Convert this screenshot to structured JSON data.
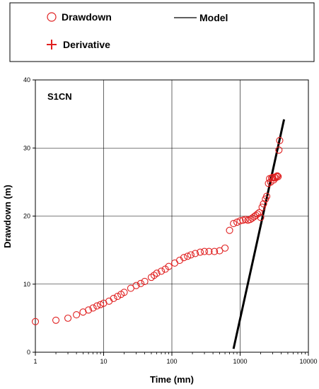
{
  "legend": {
    "drawdown": "Drawdown",
    "derivative": "Derivative",
    "model": "Model"
  },
  "colors": {
    "drawdown": "#e02020",
    "derivative": "#e02020",
    "model": "#000000",
    "grid": "#000000",
    "frame": "#000000"
  },
  "chart_data": {
    "type": "scatter",
    "title": "",
    "panel_label": "S1CN",
    "xlabel": "Time (mn)",
    "ylabel": "Drawdown (m)",
    "x_scale": "log",
    "xlim": [
      1,
      10000
    ],
    "ylim": [
      0,
      40
    ],
    "x_ticks": [
      1,
      10,
      100,
      1000,
      10000
    ],
    "x_tick_labels": [
      "1",
      "10",
      "100",
      "1000",
      "10000"
    ],
    "y_ticks": [
      0,
      10,
      20,
      30,
      40
    ],
    "y_tick_labels": [
      "0",
      "10",
      "20",
      "30",
      "40"
    ],
    "grid": true,
    "legend_position": "top",
    "series": [
      {
        "name": "Drawdown",
        "marker": "circle",
        "points": [
          [
            1,
            4.5
          ],
          [
            2,
            4.7
          ],
          [
            3,
            5.0
          ],
          [
            4,
            5.5
          ],
          [
            5,
            5.9
          ],
          [
            6,
            6.2
          ],
          [
            7,
            6.5
          ],
          [
            8,
            6.8
          ],
          [
            9,
            7.0
          ],
          [
            10,
            7.2
          ],
          [
            12,
            7.5
          ],
          [
            14,
            7.9
          ],
          [
            16,
            8.2
          ],
          [
            18,
            8.5
          ],
          [
            20,
            8.8
          ],
          [
            25,
            9.4
          ],
          [
            30,
            9.8
          ],
          [
            35,
            10.1
          ],
          [
            40,
            10.4
          ],
          [
            50,
            11.0
          ],
          [
            55,
            11.3
          ],
          [
            60,
            11.6
          ],
          [
            70,
            11.9
          ],
          [
            80,
            12.2
          ],
          [
            90,
            12.6
          ],
          [
            110,
            13.1
          ],
          [
            130,
            13.5
          ],
          [
            150,
            13.9
          ],
          [
            170,
            14.1
          ],
          [
            190,
            14.3
          ],
          [
            220,
            14.5
          ],
          [
            260,
            14.7
          ],
          [
            300,
            14.8
          ],
          [
            350,
            14.8
          ],
          [
            420,
            14.8
          ],
          [
            500,
            14.9
          ],
          [
            600,
            15.3
          ],
          [
            700,
            17.9
          ],
          [
            800,
            18.9
          ],
          [
            900,
            19.1
          ],
          [
            1000,
            19.3
          ],
          [
            1100,
            19.4
          ],
          [
            1200,
            19.5
          ],
          [
            1300,
            19.4
          ],
          [
            1400,
            19.5
          ],
          [
            1500,
            19.7
          ],
          [
            1600,
            19.9
          ],
          [
            1700,
            20.1
          ],
          [
            1800,
            20.3
          ],
          [
            1900,
            20.5
          ],
          [
            2000,
            19.8
          ],
          [
            2100,
            21.3
          ],
          [
            2200,
            21.8
          ],
          [
            2350,
            22.5
          ],
          [
            2450,
            22.9
          ],
          [
            2600,
            24.8
          ],
          [
            2700,
            25.5
          ],
          [
            2800,
            25.0
          ],
          [
            2900,
            25.6
          ],
          [
            3000,
            25.7
          ],
          [
            3100,
            25.3
          ],
          [
            3200,
            25.7
          ],
          [
            3300,
            25.6
          ],
          [
            3400,
            25.8
          ],
          [
            3500,
            25.9
          ],
          [
            3600,
            25.8
          ],
          [
            3700,
            29.7
          ],
          [
            3800,
            31.1
          ]
        ]
      },
      {
        "name": "Derivative",
        "marker": "plus",
        "points": []
      },
      {
        "name": "Model",
        "marker": "line",
        "points": [
          [
            800,
            0.5
          ],
          [
            4400,
            34.2
          ]
        ]
      }
    ]
  }
}
